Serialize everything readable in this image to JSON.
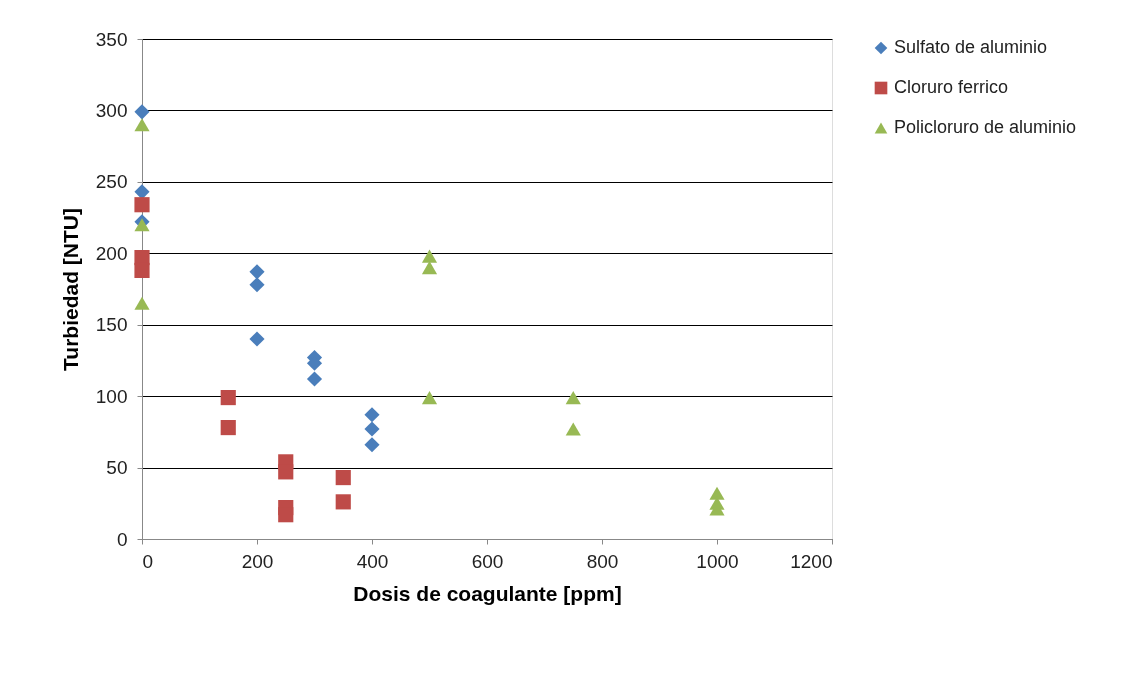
{
  "chart_data": {
    "type": "scatter",
    "xlabel": "Dosis de coagulante [ppm]",
    "ylabel": "Turbiedad  [NTU]",
    "xlim": [
      0,
      1200
    ],
    "xticks": [
      0,
      200,
      400,
      600,
      800,
      1000,
      1200
    ],
    "ylim": [
      0,
      350
    ],
    "yticks": [
      0,
      50,
      100,
      150,
      200,
      250,
      300,
      350
    ],
    "grid": "y",
    "legend": "right",
    "series": [
      {
        "name": "Sulfato de aluminio",
        "color": "#4a7ebb",
        "marker": "diamond",
        "x": [
          0,
          0,
          0,
          200,
          200,
          200,
          300,
          300,
          300,
          400,
          400,
          400
        ],
        "values": [
          299,
          243,
          222,
          187,
          178,
          140,
          127,
          123,
          112,
          87,
          77,
          66
        ]
      },
      {
        "name": "Cloruro ferrico",
        "color": "#be4b48",
        "marker": "square",
        "x": [
          0,
          0,
          0,
          150,
          150,
          250,
          250,
          250,
          250,
          350,
          350
        ],
        "values": [
          234,
          197,
          188,
          99,
          78,
          54,
          47,
          22,
          17,
          43,
          26
        ]
      },
      {
        "name": "Policloruro de aluminio",
        "color": "#98b954",
        "marker": "triangle",
        "x": [
          0,
          0,
          0,
          500,
          500,
          500,
          750,
          750,
          1000,
          1000,
          1000
        ],
        "values": [
          290,
          220,
          165,
          198,
          190,
          99,
          99,
          77,
          32,
          25,
          21
        ]
      }
    ]
  }
}
